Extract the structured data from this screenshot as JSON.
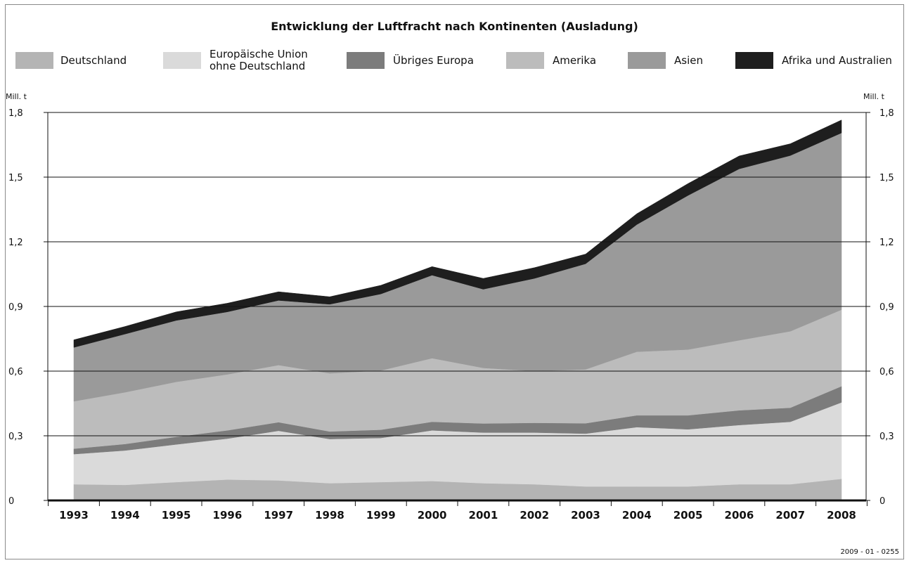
{
  "title": "Entwicklung der Luftfracht nach Kontinenten (Ausladung)",
  "y_unit": "Mill. t",
  "footer_code": "2009 - 01 - 0255",
  "legend": [
    {
      "label": "Deutschland",
      "color": "#b4b4b4"
    },
    {
      "label": "Europäische Union\nohne Deutschland",
      "color": "#dadada"
    },
    {
      "label": "Übriges Europa",
      "color": "#7c7c7c"
    },
    {
      "label": "Amerika",
      "color": "#bcbcbc"
    },
    {
      "label": "Asien",
      "color": "#9a9a9a"
    },
    {
      "label": "Afrika und Australien",
      "color": "#1e1e1e"
    }
  ],
  "chart_data": {
    "type": "area",
    "stacked": true,
    "title": "Entwicklung der Luftfracht nach Kontinenten (Ausladung)",
    "ylabel": "Mill. t",
    "ylim": [
      0,
      1.8
    ],
    "yticks": [
      "0",
      "0,3",
      "0,6",
      "0,9",
      "1,2",
      "1,5",
      "1,8"
    ],
    "ytick_values": [
      0,
      0.3,
      0.6,
      0.9,
      1.2,
      1.5,
      1.8
    ],
    "grid": true,
    "legend_position": "top",
    "x": [
      "1993",
      "1994",
      "1995",
      "1996",
      "1997",
      "1998",
      "1999",
      "2000",
      "2001",
      "2002",
      "2003",
      "2004",
      "2005",
      "2006",
      "2007",
      "2008"
    ],
    "series": [
      {
        "name": "Deutschland",
        "color": "#b4b4b4",
        "values": [
          0.075,
          0.072,
          0.085,
          0.097,
          0.093,
          0.08,
          0.085,
          0.09,
          0.08,
          0.075,
          0.065,
          0.065,
          0.065,
          0.075,
          0.075,
          0.1
        ]
      },
      {
        "name": "Europäische Union ohne Deutschland",
        "color": "#dadada",
        "values": [
          0.14,
          0.16,
          0.175,
          0.19,
          0.23,
          0.205,
          0.205,
          0.235,
          0.235,
          0.24,
          0.245,
          0.275,
          0.265,
          0.275,
          0.29,
          0.355
        ]
      },
      {
        "name": "Übriges Europa",
        "color": "#7c7c7c",
        "values": [
          0.025,
          0.03,
          0.035,
          0.038,
          0.04,
          0.035,
          0.038,
          0.04,
          0.042,
          0.045,
          0.048,
          0.055,
          0.065,
          0.068,
          0.065,
          0.075
        ]
      },
      {
        "name": "Amerika",
        "color": "#bcbcbc",
        "values": [
          0.22,
          0.24,
          0.255,
          0.26,
          0.265,
          0.27,
          0.275,
          0.295,
          0.258,
          0.24,
          0.25,
          0.295,
          0.305,
          0.325,
          0.355,
          0.355
        ]
      },
      {
        "name": "Asien",
        "color": "#9a9a9a",
        "values": [
          0.25,
          0.27,
          0.285,
          0.29,
          0.3,
          0.32,
          0.355,
          0.385,
          0.365,
          0.43,
          0.49,
          0.59,
          0.715,
          0.795,
          0.815,
          0.82
        ]
      },
      {
        "name": "Afrika und Australien",
        "color": "#1e1e1e",
        "values": [
          0.035,
          0.035,
          0.04,
          0.04,
          0.04,
          0.035,
          0.04,
          0.04,
          0.05,
          0.05,
          0.045,
          0.05,
          0.055,
          0.06,
          0.055,
          0.06
        ]
      }
    ]
  }
}
